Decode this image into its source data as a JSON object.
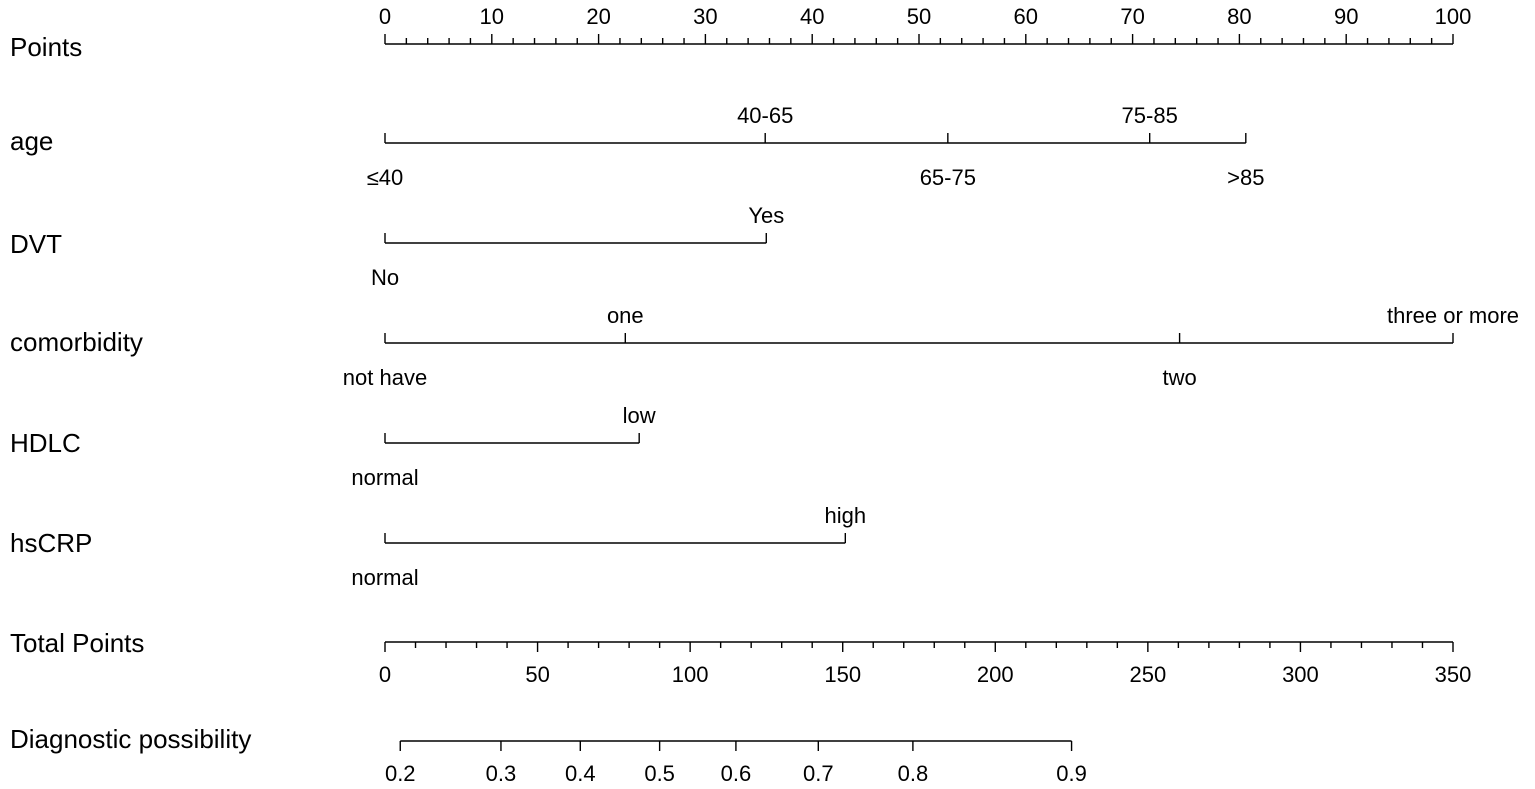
{
  "chart_data": {
    "type": "nomogram",
    "points_scale": {
      "label": "Points",
      "range": [
        0,
        100
      ],
      "ticks": [
        0,
        10,
        20,
        30,
        40,
        50,
        60,
        70,
        80,
        90,
        100
      ],
      "minor_step": 2
    },
    "variables": [
      {
        "name": "age",
        "levels": [
          {
            "label": "≤40",
            "points": 0,
            "side": "below"
          },
          {
            "label": "40-65",
            "points": 35.6,
            "side": "above"
          },
          {
            "label": "65-75",
            "points": 52.7,
            "side": "below"
          },
          {
            "label": "75-85",
            "points": 71.6,
            "side": "above"
          },
          {
            "label": ">85",
            "points": 80.6,
            "side": "below"
          }
        ]
      },
      {
        "name": "DVT",
        "levels": [
          {
            "label": "No",
            "points": 0,
            "side": "below"
          },
          {
            "label": "Yes",
            "points": 35.7,
            "side": "above"
          }
        ]
      },
      {
        "name": "comorbidity",
        "levels": [
          {
            "label": "not have",
            "points": 0,
            "side": "below"
          },
          {
            "label": "one",
            "points": 22.5,
            "side": "above"
          },
          {
            "label": "two",
            "points": 74.4,
            "side": "below"
          },
          {
            "label": "three or more",
            "points": 100,
            "side": "above"
          }
        ]
      },
      {
        "name": "HDLC",
        "levels": [
          {
            "label": "normal",
            "points": 0,
            "side": "below"
          },
          {
            "label": "low",
            "points": 23.8,
            "side": "above"
          }
        ]
      },
      {
        "name": "hsCRP",
        "levels": [
          {
            "label": "normal",
            "points": 0,
            "side": "below"
          },
          {
            "label": "high",
            "points": 43.1,
            "side": "above"
          }
        ]
      }
    ],
    "total_points": {
      "label": "Total Points",
      "range": [
        0,
        350
      ],
      "ticks": [
        0,
        50,
        100,
        150,
        200,
        250,
        300,
        350
      ],
      "minor_step": 10
    },
    "probability_scale": {
      "label": "Diagnostic possibility",
      "ticks": [
        {
          "label": "0.2",
          "total_points": 5
        },
        {
          "label": "0.3",
          "total_points": 38
        },
        {
          "label": "0.4",
          "total_points": 64
        },
        {
          "label": "0.5",
          "total_points": 90
        },
        {
          "label": "0.6",
          "total_points": 115
        },
        {
          "label": "0.7",
          "total_points": 142
        },
        {
          "label": "0.8",
          "total_points": 173
        },
        {
          "label": "0.9",
          "total_points": 225
        }
      ]
    }
  }
}
